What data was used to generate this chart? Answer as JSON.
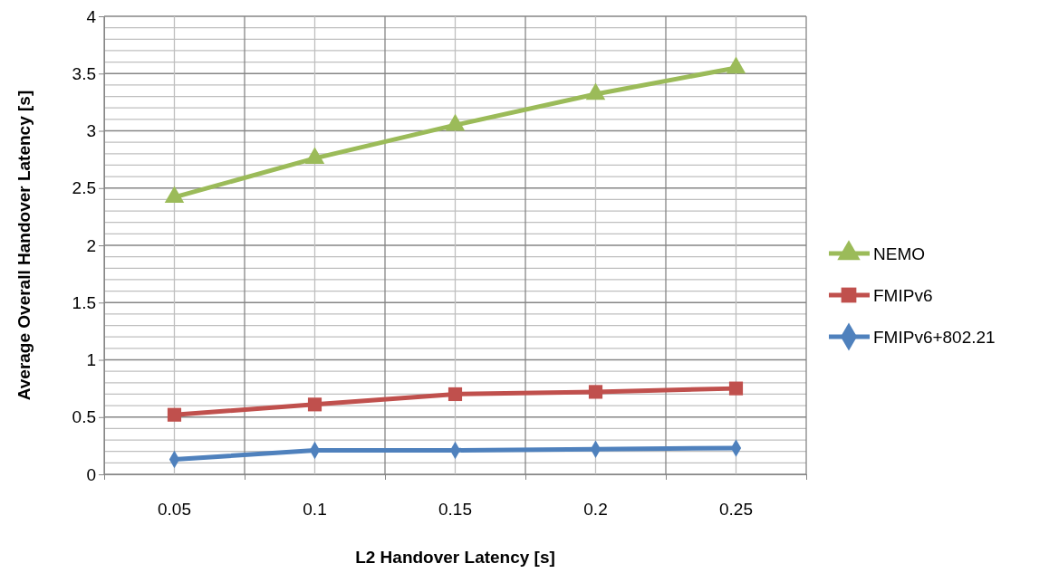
{
  "chart_data": {
    "type": "line",
    "xlabel": "L2 Handover Latency [s]",
    "ylabel": "Average Overall Handover Latency [s]",
    "categories": [
      "0.05",
      "0.1",
      "0.15",
      "0.2",
      "0.25"
    ],
    "ylim": [
      0,
      4
    ],
    "yticks": [
      0,
      0.5,
      1,
      1.5,
      2,
      2.5,
      3,
      3.5,
      4
    ],
    "grid": true,
    "legend": "right",
    "series": [
      {
        "name": "NEMO",
        "color": "#9bbb59",
        "marker": "triangle",
        "values": [
          2.42,
          2.76,
          3.05,
          3.32,
          3.55
        ]
      },
      {
        "name": "FMIPv6",
        "color": "#c0504d",
        "marker": "square",
        "values": [
          0.52,
          0.61,
          0.7,
          0.72,
          0.75
        ]
      },
      {
        "name": "FMIPv6+802.21",
        "color": "#4f81bd",
        "marker": "diamond",
        "values": [
          0.13,
          0.21,
          0.21,
          0.22,
          0.23
        ]
      }
    ]
  }
}
